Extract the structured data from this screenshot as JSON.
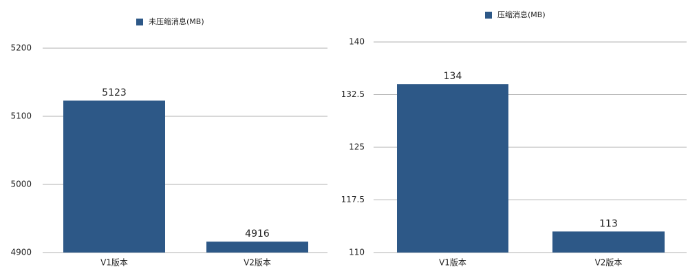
{
  "chart_data": [
    {
      "type": "bar",
      "categories": [
        "V1版本",
        "V2版本"
      ],
      "series": [
        {
          "name": "未压缩消息(MB)",
          "color": "#2d5887",
          "values": [
            5123,
            4916
          ]
        }
      ],
      "ylim": [
        4900,
        5200
      ],
      "yticks": [
        4900,
        5000,
        5100,
        5200
      ],
      "grid": true
    },
    {
      "type": "bar",
      "categories": [
        "V1版本",
        "V2版本"
      ],
      "series": [
        {
          "name": "压缩消息(MB)",
          "color": "#2d5887",
          "values": [
            134,
            113
          ]
        }
      ],
      "ylim": [
        110,
        140
      ],
      "yticks": [
        110,
        117.5,
        125,
        132.5,
        140
      ],
      "grid": true
    }
  ]
}
